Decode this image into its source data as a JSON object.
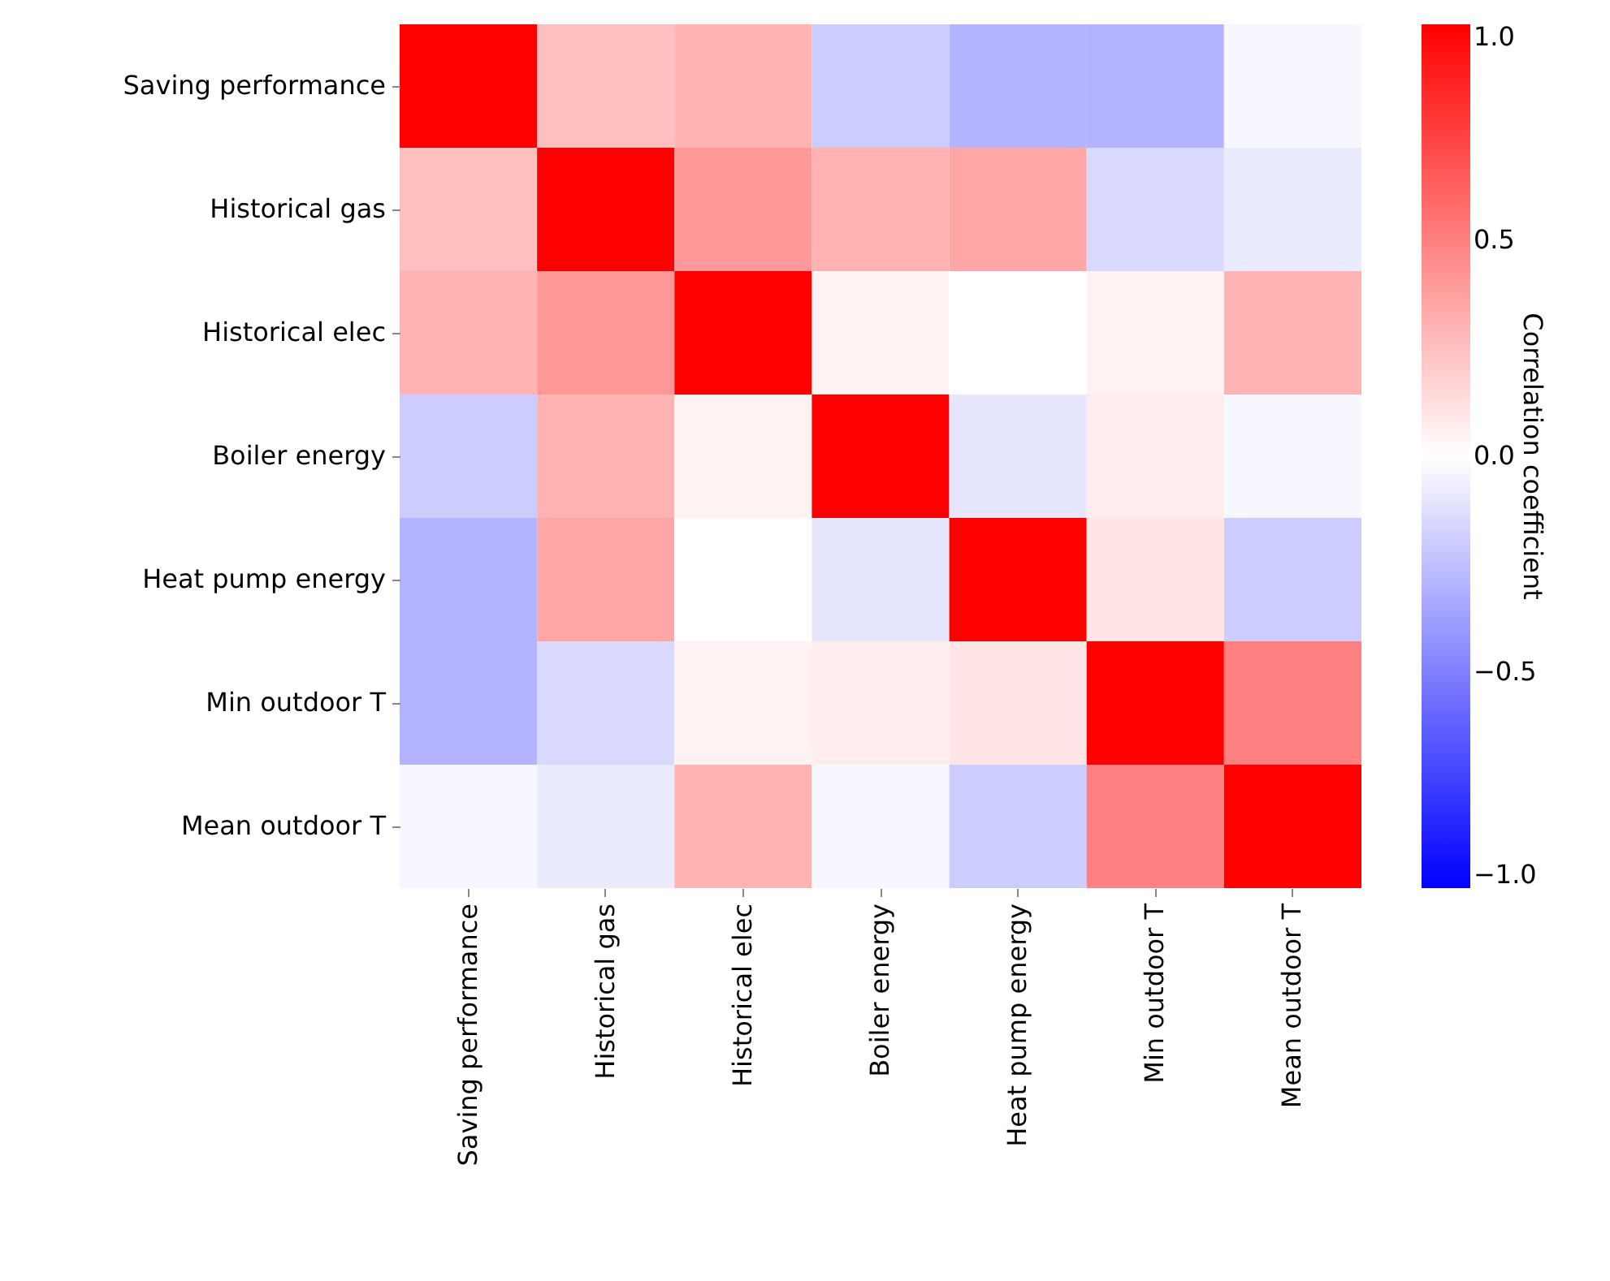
{
  "chart_data": {
    "type": "heatmap",
    "categories": [
      "Saving performance",
      "Historical gas",
      "Historical elec",
      "Boiler energy",
      "Heat pump energy",
      "Min outdoor T",
      "Mean outdoor T"
    ],
    "y_categories": [
      "Saving performance",
      "Historical gas",
      "Historical elec",
      "Boiler energy",
      "Heat pump energy",
      "Min outdoor T",
      "Mean outdoor T"
    ],
    "cells": [
      [
        1,
        0.25,
        0.3,
        -0.2,
        -0.3,
        -0.3,
        -0.03
      ],
      [
        0.25,
        1,
        0.4,
        0.3,
        0.35,
        -0.15,
        -0.08
      ],
      [
        0.3,
        0.4,
        1,
        0.05,
        0.0,
        0.05,
        0.3
      ],
      [
        -0.2,
        0.3,
        0.05,
        1,
        -0.1,
        0.07,
        -0.03
      ],
      [
        -0.3,
        0.35,
        0.0,
        -0.1,
        1,
        0.1,
        -0.2
      ],
      [
        -0.3,
        -0.15,
        0.05,
        0.07,
        0.1,
        1,
        0.5
      ],
      [
        -0.03,
        -0.08,
        0.3,
        -0.03,
        -0.2,
        0.5,
        1
      ]
    ],
    "clabel": "Correlation coefficient",
    "clim": [
      -1,
      1
    ],
    "cticks": [
      {
        "value": -1,
        "label": "−1.0"
      },
      {
        "value": -0.5,
        "label": "−0.5"
      },
      {
        "value": 0,
        "label": "0.0"
      },
      {
        "value": 0.5,
        "label": "0.5"
      },
      {
        "value": 1,
        "label": "1.0"
      }
    ]
  }
}
